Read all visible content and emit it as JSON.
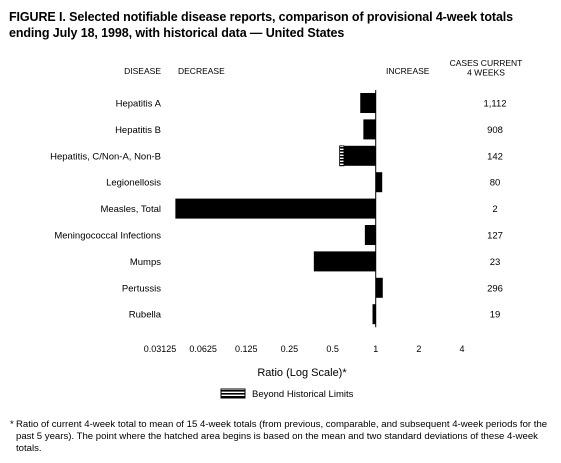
{
  "figure": {
    "title": "FIGURE I. Selected notifiable disease reports, comparison of provisional 4-week totals ending July 18, 1998, with historical data — United States",
    "footnote": "Ratio of current 4-week total to mean of 15 4-week totals (from previous, comparable, and subsequent 4-week periods for the past 5 years). The point where the hatched area begins is based on the mean and two standard deviations of these 4-week totals.",
    "footnote_marker": "*"
  },
  "chart_data": {
    "type": "bar",
    "orientation": "horizontal",
    "title": "FIGURE I. Selected notifiable disease reports, comparison of provisional 4-week totals ending July 18, 1998, with historical data — United States",
    "xlabel": "Ratio (Log Scale)*",
    "x_scale": "log2",
    "xlim": [
      0.03125,
      4
    ],
    "baseline": 1,
    "x_ticks": [
      0.03125,
      0.0625,
      0.125,
      0.25,
      0.5,
      1,
      2,
      4
    ],
    "x_tick_labels": [
      "0.03125",
      "0.0625",
      "0.125",
      "0.25",
      "0.5",
      "1",
      "2",
      "4"
    ],
    "column_headers": {
      "disease": "DISEASE",
      "decrease": "DECREASE",
      "increase": "INCREASE",
      "cases": "CASES CURRENT 4 WEEKS"
    },
    "categories": [
      "Hepatitis A",
      "Hepatitis B",
      "Hepatitis, C/Non-A, Non-B",
      "Legionellosis",
      "Measles, Total",
      "Meningococcal Infections",
      "Mumps",
      "Pertussis",
      "Rubella"
    ],
    "values": [
      0.78,
      0.82,
      0.56,
      1.11,
      0.04,
      0.84,
      0.37,
      1.12,
      0.95
    ],
    "beyond_historical_limits_from": [
      null,
      null,
      0.6,
      null,
      null,
      null,
      null,
      null,
      null
    ],
    "cases_current_4_weeks": [
      "1,112",
      "908",
      "142",
      "80",
      "2",
      "127",
      "23",
      "296",
      "19"
    ],
    "legend": [
      {
        "label": "Beyond Historical Limits",
        "pattern": "hatched"
      }
    ],
    "colors": {
      "bar": "#000000",
      "hatch_bg": "#ffffff"
    }
  }
}
